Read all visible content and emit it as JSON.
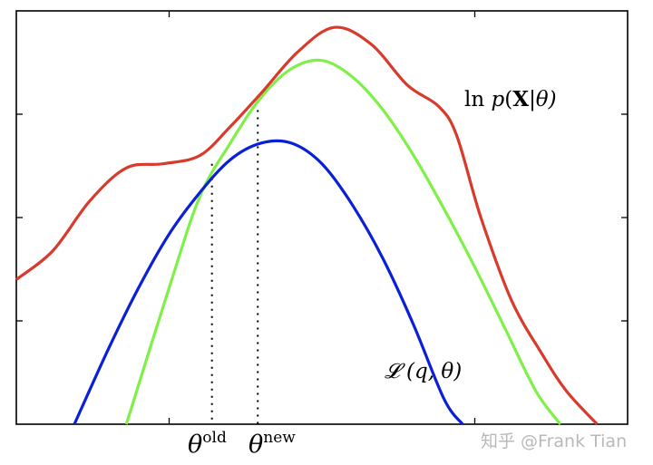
{
  "chart_data": {
    "type": "line",
    "title": "",
    "xlabel": "",
    "ylabel": "",
    "grid": false,
    "xlim": [
      0,
      10
    ],
    "ylim": [
      0,
      1
    ],
    "axis_ticks_x": [
      2.5,
      7.5
    ],
    "axis_ticks_y": [
      0.25,
      0.5,
      0.75
    ],
    "markers": [
      {
        "id": "old",
        "x": 3.2,
        "label_base": "θ",
        "label_sup": "old"
      },
      {
        "id": "new",
        "x": 3.95,
        "label_base": "θ",
        "label_sup": "new"
      }
    ],
    "series": [
      {
        "name": "ln p(X|θ)",
        "color": "#d83a2c",
        "x": [
          0,
          0.6,
          1.2,
          1.8,
          2.4,
          3.0,
          3.5,
          4.0,
          4.6,
          5.2,
          5.8,
          6.4,
          6.9,
          7.2,
          7.6,
          8.1,
          8.6,
          9.0,
          9.5
        ],
        "y": [
          0.35,
          0.42,
          0.54,
          0.62,
          0.63,
          0.65,
          0.72,
          0.8,
          0.9,
          0.96,
          0.92,
          0.82,
          0.77,
          0.7,
          0.5,
          0.3,
          0.17,
          0.08,
          0.0
        ]
      },
      {
        "name": "𝓛 (q, θ)",
        "color": "#0a1fd8",
        "x": [
          0.95,
          1.5,
          2.0,
          2.5,
          3.0,
          3.5,
          4.0,
          4.5,
          5.0,
          5.5,
          6.0,
          6.5,
          7.0,
          7.3
        ],
        "y": [
          0.0,
          0.18,
          0.33,
          0.46,
          0.56,
          0.64,
          0.68,
          0.68,
          0.63,
          0.53,
          0.4,
          0.24,
          0.06,
          0.0
        ]
      },
      {
        "name": "",
        "color": "#7ff048",
        "x": [
          1.8,
          2.5,
          3.0,
          3.5,
          4.0,
          4.5,
          5.0,
          5.5,
          6.0,
          6.5,
          7.0,
          7.5,
          8.0,
          8.5,
          8.9
        ],
        "y": [
          0.0,
          0.33,
          0.55,
          0.68,
          0.79,
          0.86,
          0.88,
          0.84,
          0.76,
          0.65,
          0.52,
          0.38,
          0.23,
          0.08,
          0.0
        ]
      }
    ],
    "annotations": [
      {
        "for_series": 0,
        "text_main": "ln ",
        "text_var": "p",
        "text_open": "(",
        "text_bold": "X",
        "text_rest": "|θ)"
      },
      {
        "for_series": 1,
        "text_main": "𝓛",
        "text_rest": " (q, θ)"
      }
    ]
  },
  "watermark": "知乎 @Frank Tian"
}
